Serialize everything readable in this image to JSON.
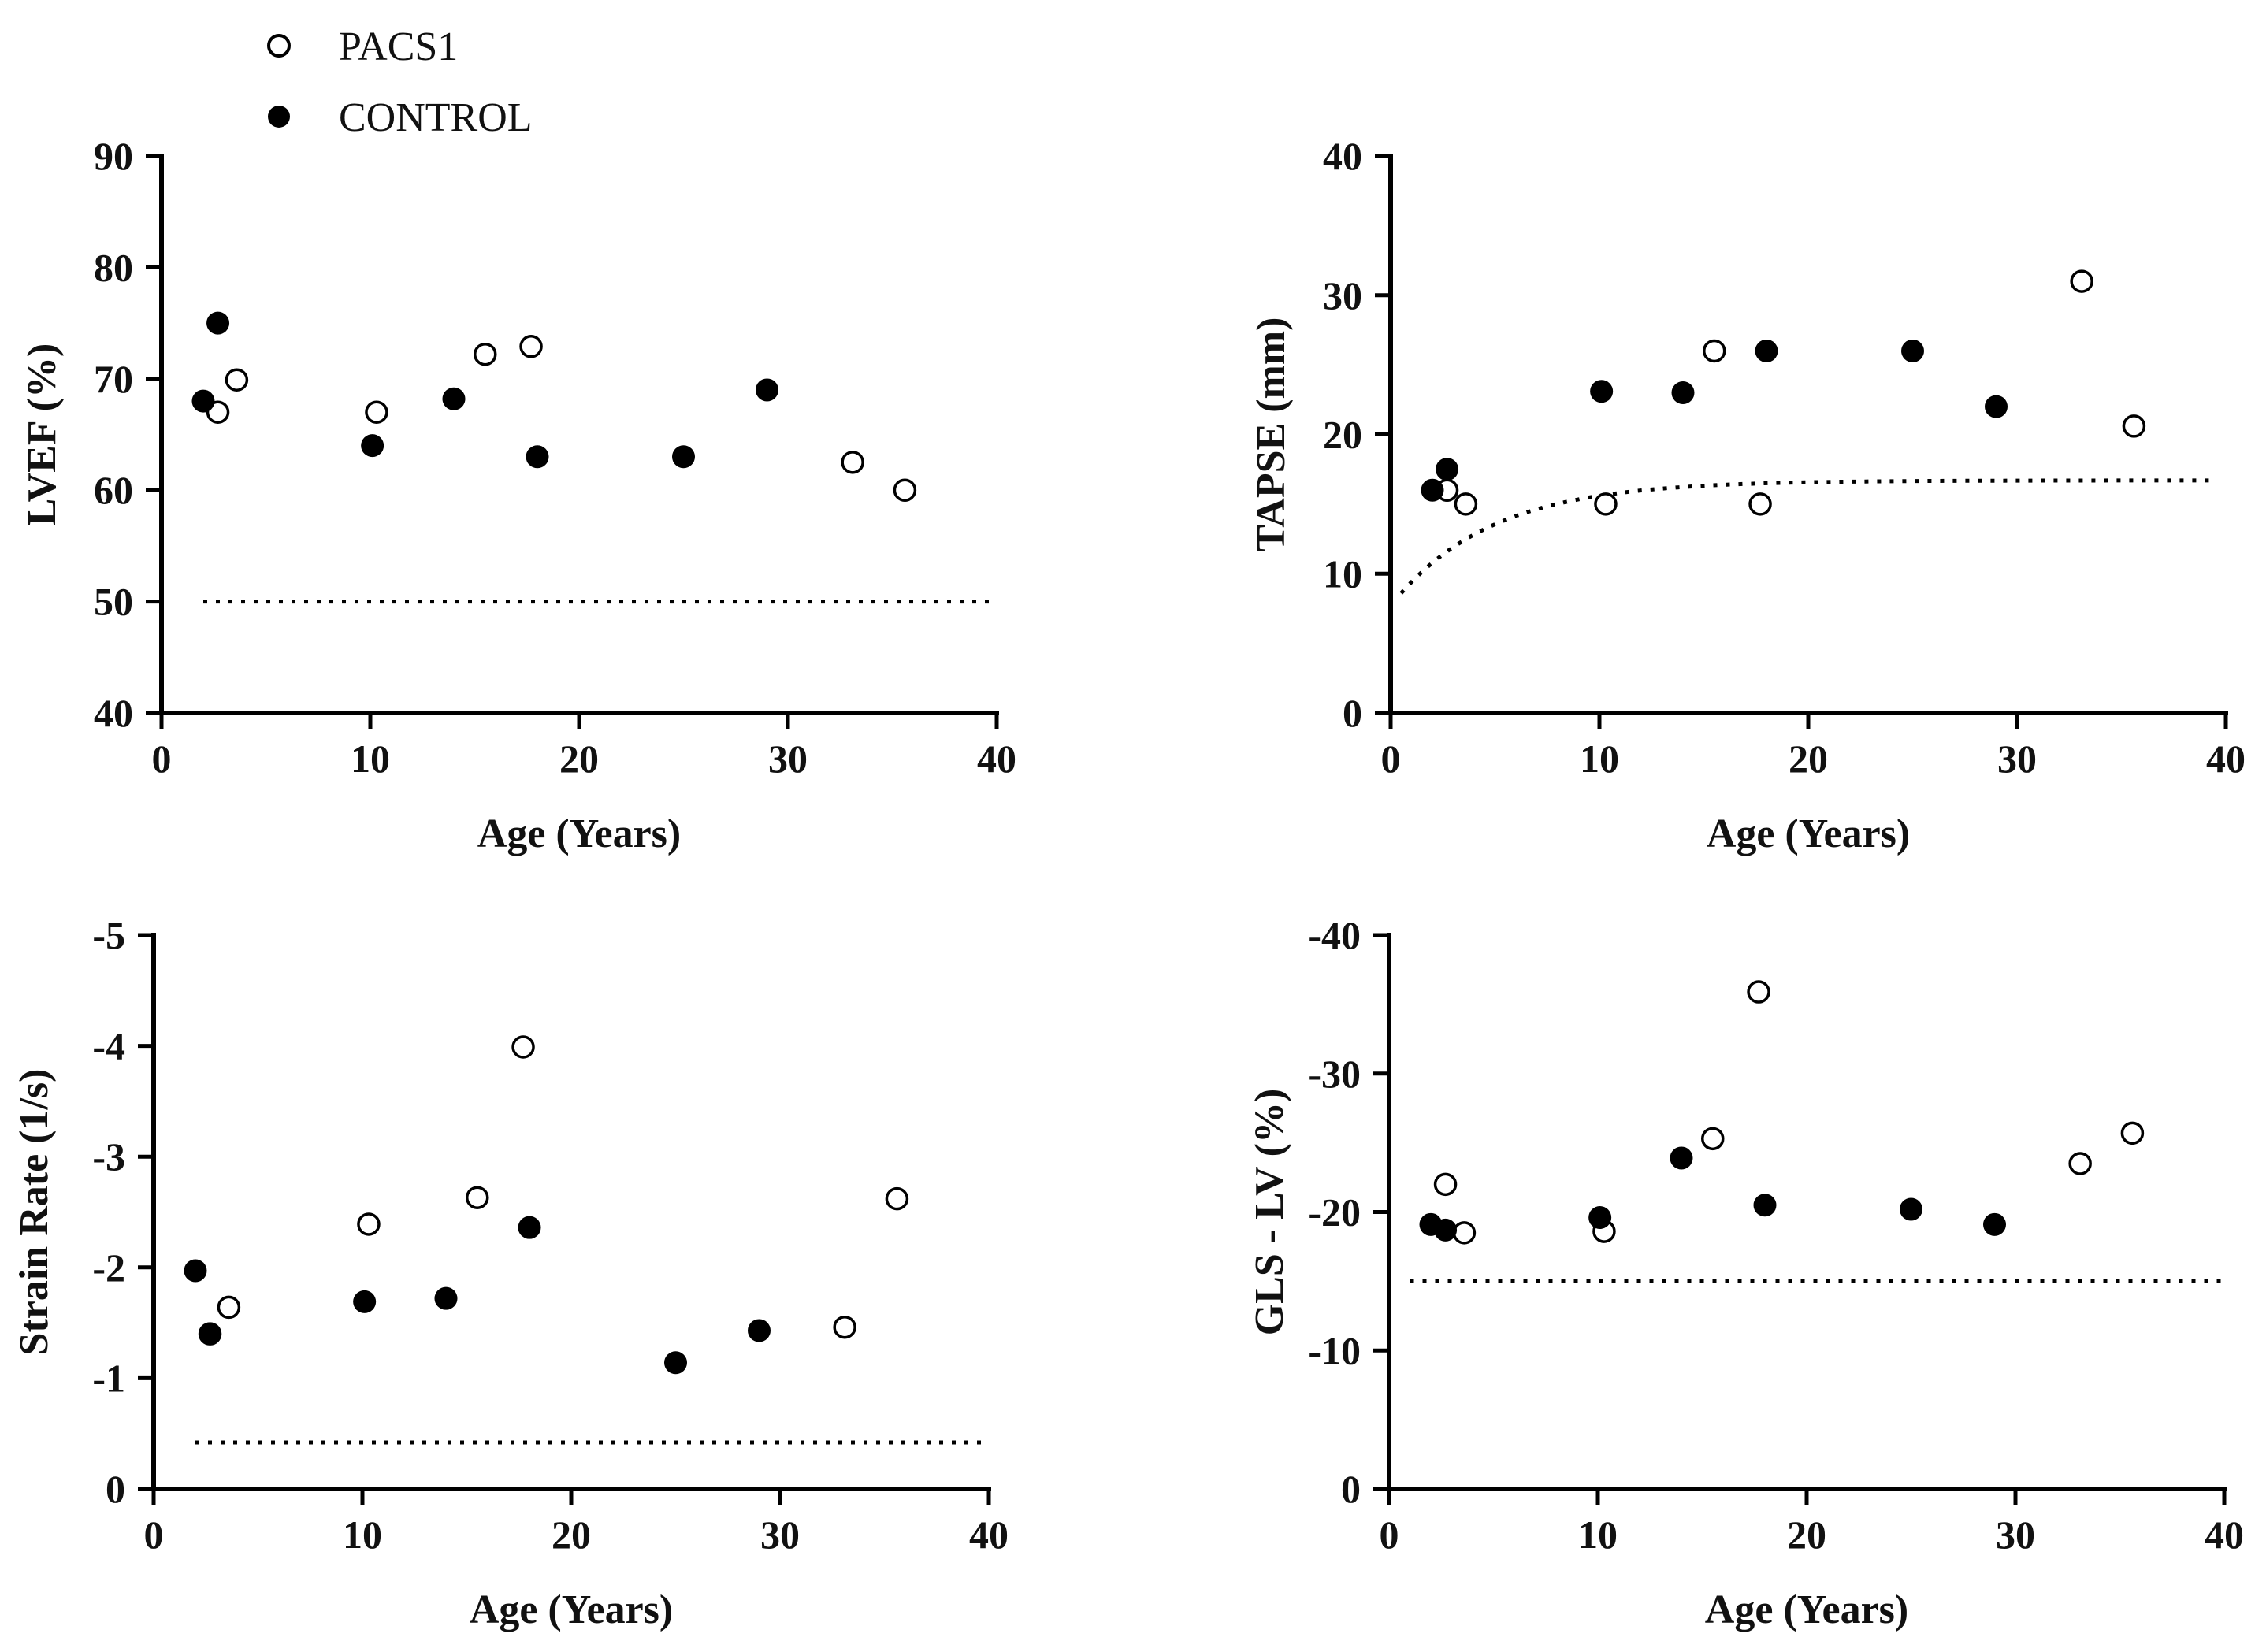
{
  "legend": {
    "items": [
      {
        "label": "PACS1",
        "marker": "open-circle"
      },
      {
        "label": "CONTROL",
        "marker": "filled-circle"
      }
    ]
  },
  "colors": {
    "ink": "#000000",
    "open_fill": "#ffffff"
  },
  "chart_data": [
    {
      "type": "scatter",
      "xlabel": "Age (Years)",
      "ylabel": "LVEF (%)",
      "xlim": [
        0,
        40
      ],
      "ylim": [
        40,
        90
      ],
      "xticks": [
        0,
        10,
        20,
        30,
        40
      ],
      "yticks": [
        40,
        50,
        60,
        70,
        80,
        90
      ],
      "yticklabels": [
        "40",
        "50",
        "60",
        "70",
        "80",
        "90"
      ],
      "reference": {
        "kind": "constant",
        "value": 50,
        "x_range": [
          2,
          40
        ]
      },
      "series": [
        {
          "name": "PACS1",
          "x": [
            2.7,
            3.6,
            10.3,
            15.5,
            17.7,
            33.1,
            35.6
          ],
          "y": [
            67.0,
            69.9,
            67.0,
            72.2,
            72.9,
            62.5,
            60.0
          ]
        },
        {
          "name": "CONTROL",
          "x": [
            2.0,
            2.7,
            10.1,
            14.0,
            18.0,
            25.0,
            29.0
          ],
          "y": [
            68.0,
            75.0,
            64.0,
            68.2,
            63.0,
            63.0,
            69.0
          ]
        }
      ]
    },
    {
      "type": "scatter",
      "xlabel": "Age (Years)",
      "ylabel": "TAPSE (mm)",
      "xlim": [
        0,
        40
      ],
      "ylim": [
        0,
        40
      ],
      "xticks": [
        0,
        10,
        20,
        30,
        40
      ],
      "yticks": [
        0,
        10,
        20,
        30,
        40
      ],
      "yticklabels": [
        "0",
        "10",
        "20",
        "30",
        "40"
      ],
      "reference": {
        "kind": "exp",
        "plateau": 16.7,
        "start": 8.6,
        "rate": 0.21,
        "x_range": [
          0.5,
          39.5
        ]
      },
      "series": [
        {
          "name": "PACS1",
          "x": [
            2.7,
            3.6,
            10.3,
            15.5,
            17.7,
            33.1,
            35.6
          ],
          "y": [
            16.0,
            15.0,
            15.0,
            26.0,
            15.0,
            31.0,
            20.6
          ]
        },
        {
          "name": "CONTROL",
          "x": [
            2.0,
            2.7,
            10.1,
            14.0,
            18.0,
            25.0,
            29.0
          ],
          "y": [
            16.0,
            17.5,
            23.1,
            23.0,
            26.0,
            26.0,
            22.0
          ]
        }
      ]
    },
    {
      "type": "scatter",
      "xlabel": "Age (Years)",
      "ylabel": "Strain Rate (1/s)",
      "xlim": [
        0,
        40
      ],
      "ylim": [
        0,
        -5
      ],
      "xticks": [
        0,
        10,
        20,
        30,
        40
      ],
      "yticks": [
        0,
        -1,
        -2,
        -3,
        -4,
        -5
      ],
      "yticklabels": [
        "0",
        "-1",
        "-2",
        "-3",
        "-4",
        "-5"
      ],
      "reference": {
        "kind": "constant",
        "value": -0.42,
        "x_range": [
          2,
          40
        ]
      },
      "series": [
        {
          "name": "PACS1",
          "x": [
            2.7,
            3.6,
            10.3,
            15.5,
            17.7,
            33.1,
            35.6
          ],
          "y": [
            -1.4,
            -1.64,
            -2.39,
            -2.63,
            -3.99,
            -1.46,
            -2.62
          ]
        },
        {
          "name": "CONTROL",
          "x": [
            2.0,
            2.7,
            10.1,
            14.0,
            18.0,
            25.0,
            29.0
          ],
          "y": [
            -1.97,
            -1.4,
            -1.69,
            -1.72,
            -2.36,
            -1.14,
            -1.43
          ]
        }
      ]
    },
    {
      "type": "scatter",
      "xlabel": "Age (Years)",
      "ylabel": "GLS - LV (%)",
      "xlim": [
        0,
        40
      ],
      "ylim": [
        0,
        -40
      ],
      "xticks": [
        0,
        10,
        20,
        30,
        40
      ],
      "yticks": [
        0,
        -10,
        -20,
        -30,
        -40
      ],
      "yticklabels": [
        "0",
        "-10",
        "-20",
        "-30",
        "-40"
      ],
      "reference": {
        "kind": "constant",
        "value": -15,
        "x_range": [
          1,
          40
        ]
      },
      "series": [
        {
          "name": "PACS1",
          "x": [
            2.7,
            3.6,
            10.3,
            15.5,
            17.7,
            33.1,
            35.6
          ],
          "y": [
            -22.0,
            -18.5,
            -18.6,
            -25.3,
            -35.9,
            -23.5,
            -25.7
          ]
        },
        {
          "name": "CONTROL",
          "x": [
            2.0,
            2.7,
            10.1,
            14.0,
            18.0,
            25.0,
            29.0
          ],
          "y": [
            -19.1,
            -18.7,
            -19.6,
            -23.9,
            -20.5,
            -20.2,
            -19.1
          ]
        }
      ]
    }
  ]
}
